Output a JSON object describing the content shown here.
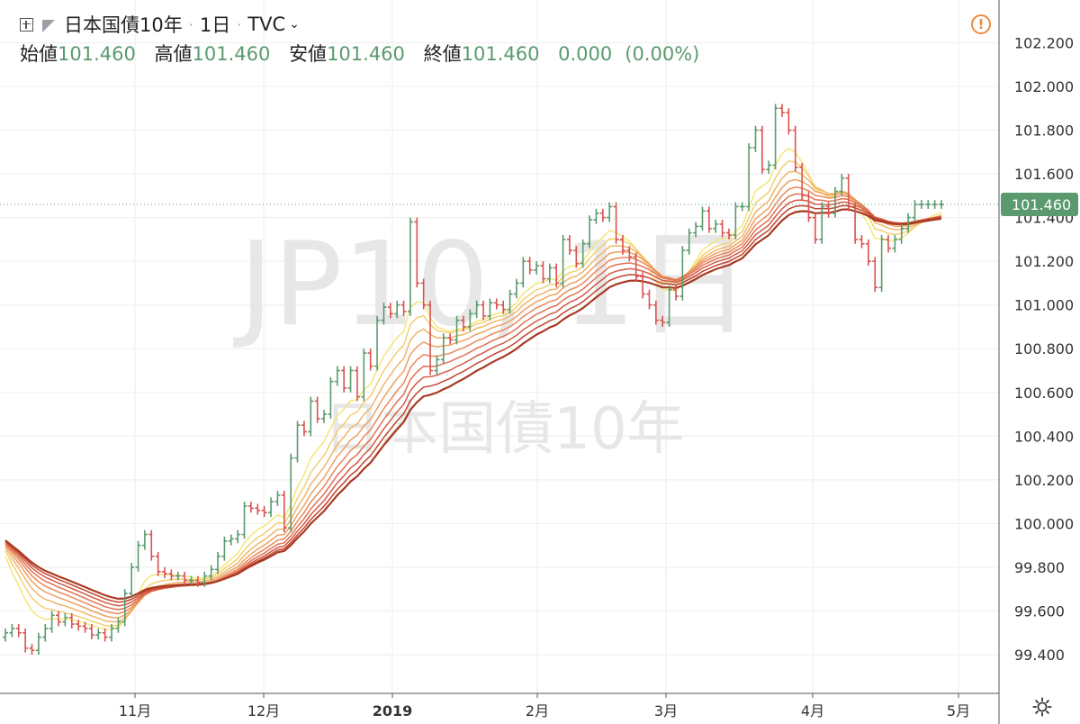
{
  "header": {
    "symbol": "日本国債10年",
    "interval": "1日",
    "source": "TVC",
    "dropdown_glyph": "⌄"
  },
  "ohlc": {
    "open_label": "始値",
    "open": "101.460",
    "high_label": "高値",
    "high": "101.460",
    "low_label": "安値",
    "low": "101.460",
    "close_label": "終値",
    "close": "101.460",
    "change": "0.000",
    "change_pct": "(0.00%)"
  },
  "watermark": {
    "big": "JP10, 1日",
    "small": "日本国債10年"
  },
  "icons": {
    "warning": "warning-icon",
    "settings": "gear-icon",
    "add": "plus-icon",
    "flag": "flag-icon"
  },
  "colors": {
    "up": "#5a9a6e",
    "down": "#d9534f",
    "grid": "#eeeeee",
    "axis_text": "#333333",
    "price_tag": "#5a9a6e",
    "ribbon": [
      "#f5e67a",
      "#f3cf73",
      "#f0b56a",
      "#eda162",
      "#e8885a",
      "#e17152",
      "#d45a45",
      "#c1452f",
      "#a83a22"
    ]
  },
  "chart_data": {
    "type": "ohlc",
    "y_ticks": [
      "102.200",
      "102.000",
      "101.800",
      "101.600",
      "101.400",
      "101.200",
      "101.000",
      "100.800",
      "100.600",
      "100.400",
      "100.200",
      "100.000",
      "99.800",
      "99.600",
      "99.400"
    ],
    "ylim": [
      99.22,
      102.35
    ],
    "x_labels": [
      "11月",
      "12月",
      "2019",
      "2月",
      "3月",
      "4月",
      "5月"
    ],
    "last_price": "101.460",
    "series_up_down": "bars",
    "bars_close": [
      99.5,
      99.52,
      99.5,
      99.43,
      99.42,
      99.48,
      99.52,
      99.58,
      99.55,
      99.57,
      99.54,
      99.53,
      99.52,
      99.49,
      99.5,
      99.48,
      99.52,
      99.55,
      99.68,
      99.8,
      99.9,
      99.95,
      99.85,
      99.78,
      99.77,
      99.76,
      99.76,
      99.74,
      99.74,
      99.73,
      99.76,
      99.79,
      99.85,
      99.92,
      99.93,
      99.95,
      100.08,
      100.07,
      100.06,
      100.05,
      100.1,
      100.13,
      99.98,
      100.3,
      100.45,
      100.42,
      100.56,
      100.48,
      100.5,
      100.65,
      100.7,
      100.62,
      100.7,
      100.58,
      100.78,
      100.72,
      100.93,
      100.99,
      100.96,
      101.0,
      100.97,
      101.38,
      101.1,
      101.0,
      100.7,
      100.75,
      100.85,
      100.84,
      100.93,
      100.9,
      100.96,
      101.0,
      100.95,
      101.01,
      101.0,
      100.98,
      101.05,
      101.1,
      101.2,
      101.16,
      101.18,
      101.12,
      101.17,
      101.1,
      101.3,
      101.25,
      101.19,
      101.28,
      101.39,
      101.42,
      101.4,
      101.45,
      101.3,
      101.25,
      101.22,
      101.13,
      101.05,
      101.0,
      100.93,
      100.92,
      101.07,
      101.04,
      101.25,
      101.33,
      101.36,
      101.43,
      101.35,
      101.37,
      101.33,
      101.32,
      101.45,
      101.45,
      101.72,
      101.8,
      101.62,
      101.64,
      101.9,
      101.88,
      101.8,
      101.63,
      101.5,
      101.4,
      101.3,
      101.45,
      101.42,
      101.52,
      101.58,
      101.45,
      101.3,
      101.28,
      101.2,
      101.08,
      101.3,
      101.26,
      101.3,
      101.35,
      101.4,
      101.46,
      101.46,
      101.46,
      101.46,
      101.46
    ]
  }
}
